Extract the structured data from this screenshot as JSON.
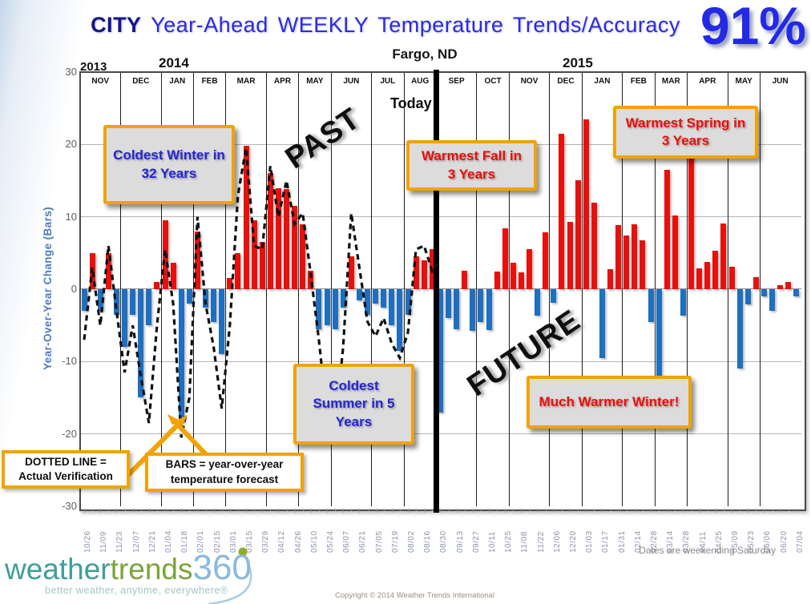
{
  "header": {
    "city": "CITY",
    "title": "Year-Ahead WEEKLY Temperature Trends/Accuracy",
    "accuracy": "91%",
    "location": "Fargo, ND",
    "year_left": "2013",
    "year_mid": "2014",
    "year_right": "2015"
  },
  "labels": {
    "today": "Today",
    "past": "PAST",
    "future": "FUTURE"
  },
  "axis": {
    "y_title": "Year-Over-Year Change (Bars)",
    "footnote": "Dates are weekending Saturday"
  },
  "annotations": {
    "coldest_winter": "Coldest Winter in 32 Years",
    "warmest_fall": "Warmest Fall in 3 Years",
    "warmest_spring": "Warmest Spring in 3 Years",
    "coldest_summer": "Coldest Summer in 5 Years",
    "much_warmer": "Much Warmer Winter!"
  },
  "legend": {
    "dotted_l1": "DOTTED LINE =",
    "dotted_l2": "Actual Verification",
    "bars_l1": "BARS = year-over-year",
    "bars_l2": "temperature forecast"
  },
  "footer": {
    "logo_weather": "weather",
    "logo_trends": "trends",
    "logo_360": "360",
    "tagline": "better weather, anytime, everywhere®",
    "copyright": "Copyright © 2014 Weather Trends International"
  },
  "chart_data": {
    "type": "bar",
    "title": "CITY Year-Ahead WEEKLY Temperature Trends/Accuracy — Fargo, ND",
    "ylabel": "Year-Over-Year Change (Bars)",
    "ylim": [
      -30,
      30
    ],
    "y_ticks": [
      30,
      20,
      10,
      0,
      -10,
      -20,
      -30
    ],
    "grid": true,
    "months": [
      "NOV",
      "DEC",
      "JAN",
      "FEB",
      "MAR",
      "APR",
      "MAY",
      "JUN",
      "JUL",
      "AUG",
      "SEP",
      "OCT",
      "NOV",
      "DEC",
      "JAN",
      "FEB",
      "MAR",
      "APR",
      "MAY",
      "JUN"
    ],
    "month_weeks": [
      5,
      5,
      4,
      4,
      5,
      4,
      4,
      5,
      4,
      4,
      5,
      4,
      5,
      4,
      5,
      4,
      4,
      5,
      4,
      5
    ],
    "week_tick_labels": [
      "10/26",
      "11/09",
      "11/23",
      "12/07",
      "12/21",
      "01/04",
      "01/18",
      "02/01",
      "02/15",
      "03/01",
      "03/15",
      "03/29",
      "04/12",
      "04/26",
      "05/10",
      "05/24",
      "06/07",
      "06/21",
      "07/05",
      "07/19",
      "08/02",
      "08/16",
      "08/30",
      "09/13",
      "09/27",
      "10/11",
      "10/25",
      "11/08",
      "11/22",
      "12/06",
      "12/20",
      "01/03",
      "01/17",
      "01/31",
      "02/14",
      "02/28",
      "03/14",
      "03/28",
      "04/11",
      "04/25",
      "05/09",
      "05/23",
      "06/06",
      "06/20",
      "07/04"
    ],
    "bar_series_name": "BARS = year-over-year temperature forecast",
    "bar_values": [
      -3,
      5,
      -3,
      5,
      -3.5,
      -8,
      -3.5,
      -15,
      -5,
      1,
      9.5,
      3.7,
      -18.5,
      -2,
      8,
      -2.5,
      -4.5,
      -9,
      1.5,
      5,
      19.8,
      9.5,
      6.5,
      16,
      14,
      13.8,
      11.5,
      9,
      2.5,
      -5.5,
      -5,
      -5.5,
      -2.5,
      4.5,
      -1.5,
      -3.5,
      -2,
      -2.5,
      -5,
      -8.5,
      -3.5,
      4.5,
      4,
      5.5,
      -17,
      -4,
      -5.5,
      2.5,
      -5.8,
      -4.5,
      -5.6,
      2.4,
      8.4,
      3.7,
      2.3,
      5.5,
      -3.6,
      7.9,
      -1.9,
      21.5,
      9.3,
      15.1,
      23.5,
      12,
      -9.5,
      2.8,
      8.9,
      7.4,
      9,
      6.8,
      -4.5,
      -14,
      16.5,
      10.2,
      -3.6,
      19,
      2.9,
      3.8,
      5.3,
      9.1,
      3.1,
      -11,
      -2.1,
      1.7,
      -1,
      -3,
      0.6,
      1,
      -1
    ],
    "dashed_series_name": "DOTTED LINE = Actual Verification",
    "dashed_actual": [
      -7,
      3,
      -5,
      6,
      -3,
      -11.5,
      -5,
      -12,
      -18.5,
      -5,
      5.5,
      -2,
      -20.5,
      -15,
      10,
      -2,
      -8,
      -16.5,
      -5,
      13,
      19.5,
      6,
      5.5,
      17,
      10,
      15,
      9,
      10.5,
      2,
      -7,
      -17.5,
      -19,
      -8,
      10.5,
      3,
      -4.5,
      -6.5,
      -4,
      -7.5,
      -9.5,
      -6,
      5.5,
      6,
      2.5,
      4
    ],
    "today_week_index": 44,
    "bar_color_positive": "#e8100c",
    "bar_color_negative": "#1e6fc0"
  }
}
